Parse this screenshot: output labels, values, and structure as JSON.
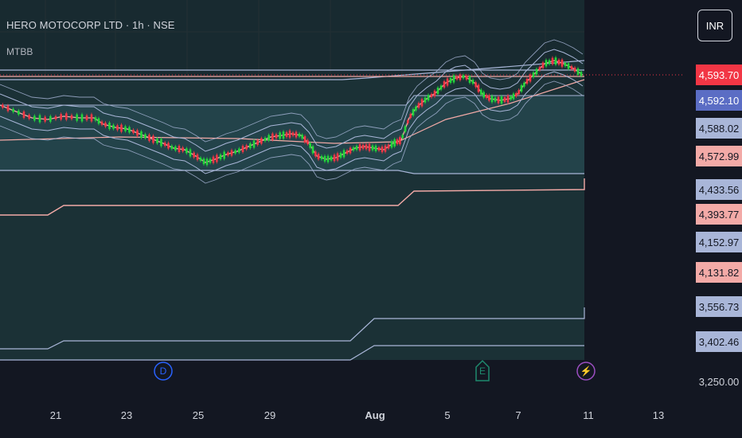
{
  "header": {
    "title": "HERO MOTOCORP LTD · 1h · NSE",
    "indicator": "MTBB",
    "currency": "INR"
  },
  "chart_data": {
    "type": "line",
    "symbol": "HERO MOTOCORP LTD",
    "interval": "1h",
    "exchange": "NSE",
    "y_range": [
      3250,
      4750
    ],
    "y_scale": "linear",
    "x_ticks": [
      "21",
      "23",
      "25",
      "29",
      "Aug",
      "5",
      "7",
      "11",
      "13"
    ],
    "y_tick_visible": "3,250.00",
    "price_labels": [
      {
        "value": "4,593.70",
        "color": "#f23645",
        "type": "last-price"
      },
      {
        "value": "4,592.10",
        "color": "#5b6dc4"
      },
      {
        "value": "4,588.02",
        "color": "#a9b6d8"
      },
      {
        "value": "4,572.99",
        "color": "#f3aaa7"
      },
      {
        "value": "4,433.56",
        "color": "#a9b6d8"
      },
      {
        "value": "4,393.77",
        "color": "#f3aaa7"
      },
      {
        "value": "4,152.97",
        "color": "#a9b6d8"
      },
      {
        "value": "4,131.82",
        "color": "#f3aaa7"
      },
      {
        "value": "3,556.73",
        "color": "#a9b6d8"
      },
      {
        "value": "3,402.46",
        "color": "#a9b6d8"
      }
    ],
    "event_markers": [
      {
        "label": "D",
        "color": "#2962ff",
        "type": "dividend"
      },
      {
        "label": "E",
        "color": "#1e8a6e",
        "type": "earnings"
      },
      {
        "label": "⚡",
        "color": "#9c4ec2",
        "type": "split"
      }
    ],
    "grid": true,
    "colors": {
      "up": "#22d63a",
      "down": "#f23645",
      "band": "#a9b6d8",
      "basis": "#f3aaa7",
      "background": "#131722"
    }
  }
}
